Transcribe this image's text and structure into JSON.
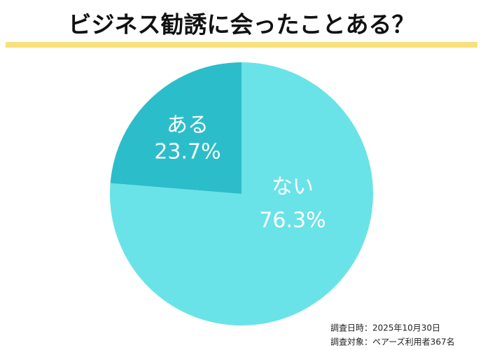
{
  "chart_data": {
    "type": "pie",
    "title": "ビジネス勧誘に会ったことある？",
    "categories": [
      "ない",
      "ある"
    ],
    "values": [
      76.3,
      23.7
    ],
    "value_labels": [
      "76.3%",
      "23.7%"
    ],
    "colors": [
      "#6ae3e8",
      "#2cbdca"
    ],
    "notes": [
      "調査日時：2025年10月30日",
      "調査対象：ペアーズ利用者367名"
    ]
  }
}
